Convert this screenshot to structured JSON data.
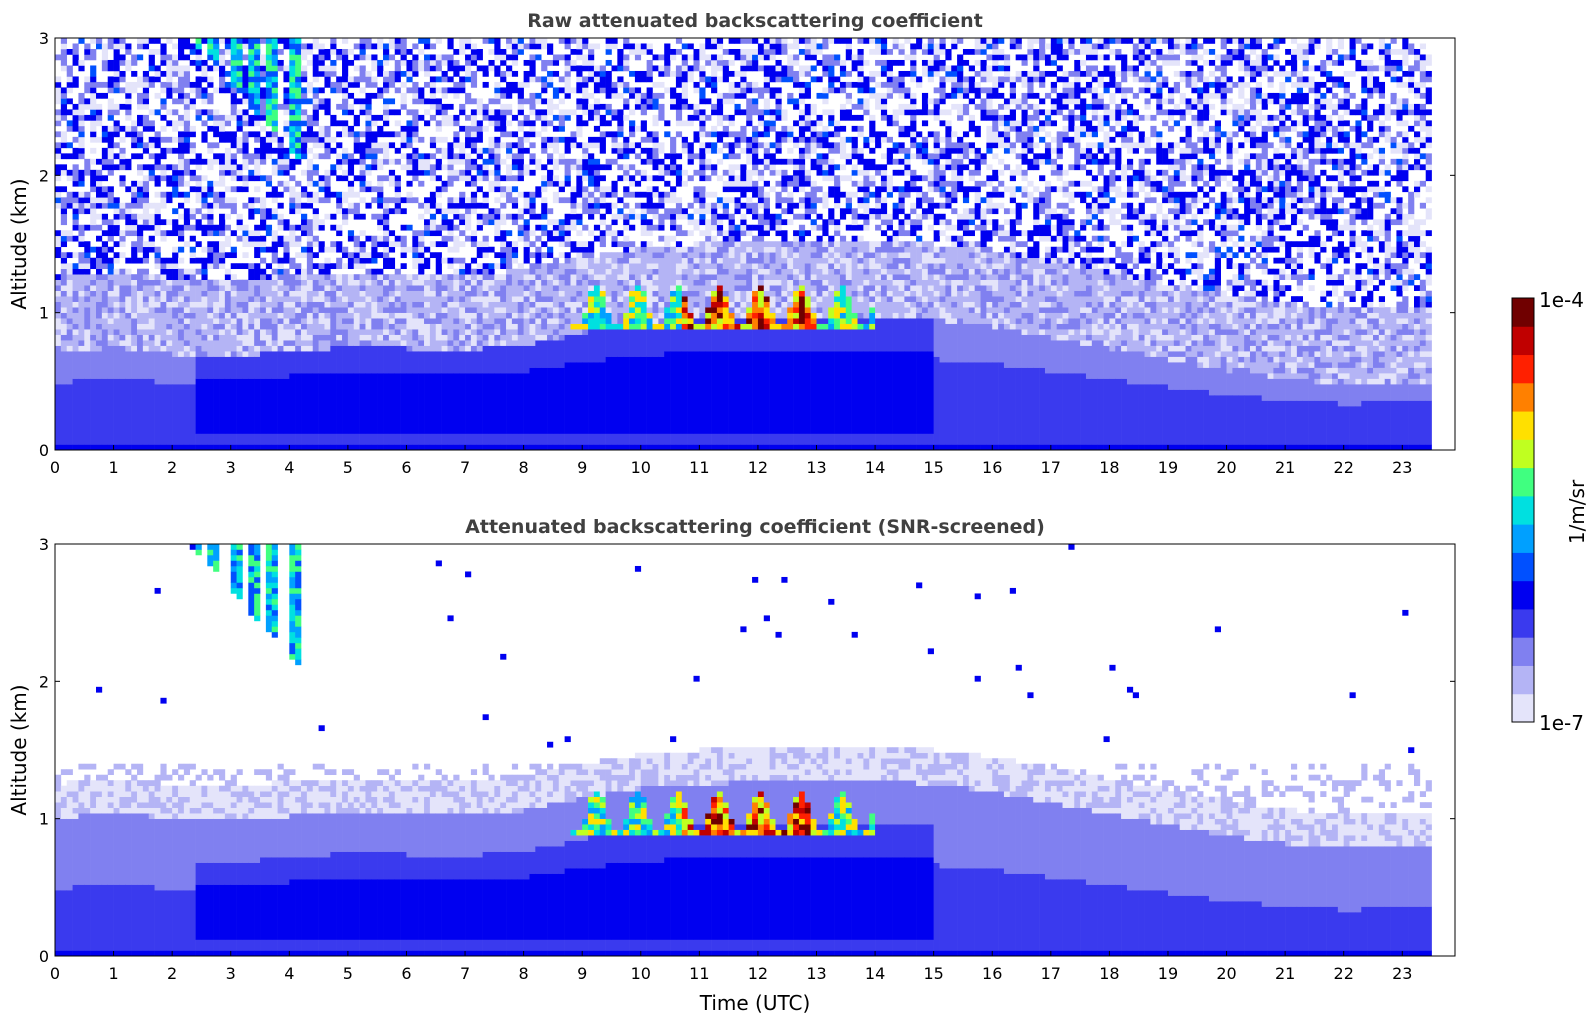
{
  "chart_data": [
    {
      "type": "heatmap",
      "title": "Raw attenuated backscattering coefficient",
      "xlabel": "",
      "ylabel": "Altitude (km)",
      "xlim": [
        0,
        23.9
      ],
      "ylim": [
        0,
        3
      ],
      "xticks": [
        0,
        1,
        2,
        3,
        4,
        5,
        6,
        7,
        8,
        9,
        10,
        11,
        12,
        13,
        14,
        15,
        16,
        17,
        18,
        19,
        20,
        21,
        22,
        23
      ],
      "yticks": [
        0,
        1,
        2,
        3
      ],
      "data_extent_hours": 23.5,
      "mixing_layer_top_km": [
        0.7,
        0.75,
        0.7,
        0.68,
        0.72,
        0.75,
        0.74,
        0.73,
        0.76,
        0.85,
        0.92,
        0.95,
        0.97,
        0.98,
        0.98,
        0.95,
        0.9,
        0.82,
        0.74,
        0.66,
        0.58,
        0.52,
        0.48,
        0.5
      ],
      "cloud_layer": {
        "start_hour": 8.8,
        "end_hour": 14.0,
        "base_km": 0.9,
        "top_km": 1.2,
        "peak_value": "1e-4"
      },
      "cirrus_fall_streak": {
        "start_hour": 2.4,
        "end_hour": 4.3,
        "top_km": 3.0,
        "bottom_km": 2.1
      }
    },
    {
      "type": "heatmap",
      "title": "Attenuated backscattering coefficient (SNR-screened)",
      "xlabel": "Time (UTC)",
      "ylabel": "Altitude (km)",
      "xlim": [
        0,
        23.9
      ],
      "ylim": [
        0,
        3
      ],
      "xticks": [
        0,
        1,
        2,
        3,
        4,
        5,
        6,
        7,
        8,
        9,
        10,
        11,
        12,
        13,
        14,
        15,
        16,
        17,
        18,
        19,
        20,
        21,
        22,
        23
      ],
      "yticks": [
        0,
        1,
        2,
        3
      ],
      "data_extent_hours": 23.5,
      "noise_screened_above_km": 1.4,
      "mixing_layer_top_km": [
        0.7,
        0.75,
        0.7,
        0.68,
        0.72,
        0.75,
        0.74,
        0.73,
        0.76,
        0.85,
        0.92,
        0.95,
        0.97,
        0.98,
        0.98,
        0.95,
        0.9,
        0.82,
        0.74,
        0.66,
        0.58,
        0.52,
        0.48,
        0.5
      ],
      "cloud_layer": {
        "start_hour": 8.8,
        "end_hour": 14.0,
        "base_km": 0.9,
        "top_km": 1.2,
        "peak_value": "1e-4"
      },
      "cirrus_fall_streak": {
        "start_hour": 2.4,
        "end_hour": 4.3,
        "top_km": 3.0,
        "bottom_km": 2.1
      }
    }
  ],
  "colorbar": {
    "label": "1/m/sr",
    "max_label": "1e-4",
    "min_label": "1e-7",
    "scale": "log",
    "colors": [
      "#e4e4fa",
      "#b4b4f5",
      "#8080f0",
      "#3a3aee",
      "#0000f0",
      "#0050ff",
      "#00a0ff",
      "#00e0e0",
      "#40ff80",
      "#c0ff20",
      "#ffe000",
      "#ff8000",
      "#ff2000",
      "#c00000",
      "#700000"
    ]
  }
}
